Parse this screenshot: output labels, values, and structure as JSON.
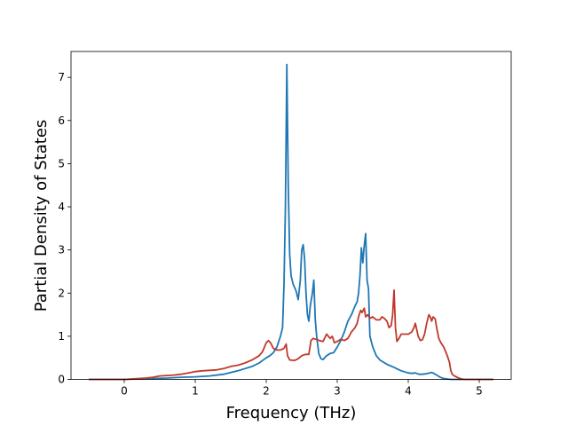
{
  "chart_data": {
    "type": "line",
    "xlabel": "Frequency (THz)",
    "ylabel": "Partial Density of States",
    "xlim": [
      -0.75,
      5.45
    ],
    "ylim": [
      0,
      7.6
    ],
    "xticks": [
      0,
      1,
      2,
      3,
      4,
      5
    ],
    "yticks": [
      0,
      1,
      2,
      3,
      4,
      5,
      6,
      7
    ],
    "grid": false,
    "series": [
      {
        "color": "#1f77b4",
        "points": [
          [
            -0.5,
            0
          ],
          [
            0,
            0
          ],
          [
            0.2,
            0.01
          ],
          [
            0.4,
            0.02
          ],
          [
            0.6,
            0.03
          ],
          [
            0.8,
            0.05
          ],
          [
            1,
            0.06
          ],
          [
            1.2,
            0.08
          ],
          [
            1.4,
            0.12
          ],
          [
            1.6,
            0.2
          ],
          [
            1.8,
            0.3
          ],
          [
            1.9,
            0.38
          ],
          [
            2.0,
            0.5
          ],
          [
            2.05,
            0.55
          ],
          [
            2.1,
            0.62
          ],
          [
            2.15,
            0.75
          ],
          [
            2.2,
            1.0
          ],
          [
            2.23,
            1.2
          ],
          [
            2.25,
            2.2
          ],
          [
            2.27,
            4.0
          ],
          [
            2.29,
            7.3
          ],
          [
            2.31,
            4.5
          ],
          [
            2.33,
            2.9
          ],
          [
            2.35,
            2.4
          ],
          [
            2.38,
            2.2
          ],
          [
            2.42,
            2.05
          ],
          [
            2.45,
            1.85
          ],
          [
            2.48,
            2.3
          ],
          [
            2.5,
            3.0
          ],
          [
            2.52,
            3.12
          ],
          [
            2.54,
            2.8
          ],
          [
            2.56,
            2.0
          ],
          [
            2.58,
            1.5
          ],
          [
            2.6,
            1.35
          ],
          [
            2.62,
            1.7
          ],
          [
            2.65,
            2.0
          ],
          [
            2.67,
            2.3
          ],
          [
            2.69,
            1.4
          ],
          [
            2.71,
            1.0
          ],
          [
            2.74,
            0.6
          ],
          [
            2.77,
            0.48
          ],
          [
            2.8,
            0.46
          ],
          [
            2.85,
            0.55
          ],
          [
            2.9,
            0.6
          ],
          [
            2.95,
            0.62
          ],
          [
            3.0,
            0.75
          ],
          [
            3.05,
            0.9
          ],
          [
            3.1,
            1.1
          ],
          [
            3.15,
            1.35
          ],
          [
            3.2,
            1.5
          ],
          [
            3.25,
            1.7
          ],
          [
            3.28,
            1.8
          ],
          [
            3.3,
            2.0
          ],
          [
            3.32,
            2.4
          ],
          [
            3.34,
            3.05
          ],
          [
            3.36,
            2.7
          ],
          [
            3.38,
            3.1
          ],
          [
            3.4,
            3.38
          ],
          [
            3.42,
            2.3
          ],
          [
            3.44,
            2.1
          ],
          [
            3.46,
            1.0
          ],
          [
            3.5,
            0.75
          ],
          [
            3.55,
            0.55
          ],
          [
            3.6,
            0.45
          ],
          [
            3.7,
            0.35
          ],
          [
            3.8,
            0.28
          ],
          [
            3.9,
            0.2
          ],
          [
            4.0,
            0.15
          ],
          [
            4.05,
            0.14
          ],
          [
            4.1,
            0.15
          ],
          [
            4.15,
            0.12
          ],
          [
            4.2,
            0.12
          ],
          [
            4.25,
            0.13
          ],
          [
            4.3,
            0.15
          ],
          [
            4.32,
            0.16
          ],
          [
            4.35,
            0.15
          ],
          [
            4.4,
            0.1
          ],
          [
            4.45,
            0.05
          ],
          [
            4.5,
            0.02
          ],
          [
            4.6,
            0
          ],
          [
            5.2,
            0
          ]
        ]
      },
      {
        "color": "#c0392b",
        "points": [
          [
            -0.5,
            0
          ],
          [
            0,
            0
          ],
          [
            0.1,
            0.01
          ],
          [
            0.2,
            0.02
          ],
          [
            0.3,
            0.03
          ],
          [
            0.4,
            0.05
          ],
          [
            0.5,
            0.08
          ],
          [
            0.6,
            0.09
          ],
          [
            0.7,
            0.1
          ],
          [
            0.8,
            0.12
          ],
          [
            0.9,
            0.15
          ],
          [
            1.0,
            0.18
          ],
          [
            1.1,
            0.2
          ],
          [
            1.2,
            0.21
          ],
          [
            1.3,
            0.22
          ],
          [
            1.4,
            0.25
          ],
          [
            1.5,
            0.3
          ],
          [
            1.6,
            0.33
          ],
          [
            1.7,
            0.38
          ],
          [
            1.8,
            0.45
          ],
          [
            1.9,
            0.55
          ],
          [
            1.95,
            0.65
          ],
          [
            2.0,
            0.85
          ],
          [
            2.03,
            0.9
          ],
          [
            2.06,
            0.85
          ],
          [
            2.1,
            0.72
          ],
          [
            2.15,
            0.68
          ],
          [
            2.2,
            0.68
          ],
          [
            2.25,
            0.72
          ],
          [
            2.28,
            0.82
          ],
          [
            2.3,
            0.55
          ],
          [
            2.33,
            0.45
          ],
          [
            2.4,
            0.44
          ],
          [
            2.45,
            0.48
          ],
          [
            2.5,
            0.55
          ],
          [
            2.55,
            0.58
          ],
          [
            2.6,
            0.58
          ],
          [
            2.63,
            0.9
          ],
          [
            2.66,
            0.95
          ],
          [
            2.7,
            0.93
          ],
          [
            2.75,
            0.9
          ],
          [
            2.8,
            0.88
          ],
          [
            2.85,
            1.05
          ],
          [
            2.9,
            0.95
          ],
          [
            2.93,
            1.0
          ],
          [
            2.96,
            0.85
          ],
          [
            3.0,
            0.88
          ],
          [
            3.05,
            0.93
          ],
          [
            3.1,
            0.9
          ],
          [
            3.15,
            0.95
          ],
          [
            3.2,
            1.1
          ],
          [
            3.25,
            1.2
          ],
          [
            3.28,
            1.3
          ],
          [
            3.3,
            1.45
          ],
          [
            3.33,
            1.6
          ],
          [
            3.35,
            1.55
          ],
          [
            3.38,
            1.65
          ],
          [
            3.4,
            1.45
          ],
          [
            3.43,
            1.5
          ],
          [
            3.46,
            1.42
          ],
          [
            3.5,
            1.45
          ],
          [
            3.55,
            1.38
          ],
          [
            3.6,
            1.38
          ],
          [
            3.63,
            1.45
          ],
          [
            3.66,
            1.42
          ],
          [
            3.7,
            1.35
          ],
          [
            3.73,
            1.2
          ],
          [
            3.76,
            1.25
          ],
          [
            3.78,
            1.5
          ],
          [
            3.8,
            2.07
          ],
          [
            3.82,
            1.2
          ],
          [
            3.84,
            0.88
          ],
          [
            3.87,
            0.95
          ],
          [
            3.9,
            1.05
          ],
          [
            3.95,
            1.05
          ],
          [
            4.0,
            1.05
          ],
          [
            4.05,
            1.1
          ],
          [
            4.08,
            1.2
          ],
          [
            4.1,
            1.3
          ],
          [
            4.12,
            1.15
          ],
          [
            4.14,
            1.0
          ],
          [
            4.17,
            0.9
          ],
          [
            4.2,
            0.92
          ],
          [
            4.23,
            1.05
          ],
          [
            4.26,
            1.3
          ],
          [
            4.29,
            1.5
          ],
          [
            4.31,
            1.45
          ],
          [
            4.33,
            1.35
          ],
          [
            4.35,
            1.45
          ],
          [
            4.38,
            1.4
          ],
          [
            4.4,
            1.2
          ],
          [
            4.43,
            0.95
          ],
          [
            4.46,
            0.85
          ],
          [
            4.5,
            0.75
          ],
          [
            4.55,
            0.55
          ],
          [
            4.58,
            0.4
          ],
          [
            4.6,
            0.2
          ],
          [
            4.62,
            0.12
          ],
          [
            4.65,
            0.08
          ],
          [
            4.7,
            0.04
          ],
          [
            4.75,
            0.01
          ],
          [
            4.8,
            0
          ],
          [
            5.2,
            0
          ]
        ]
      }
    ]
  }
}
